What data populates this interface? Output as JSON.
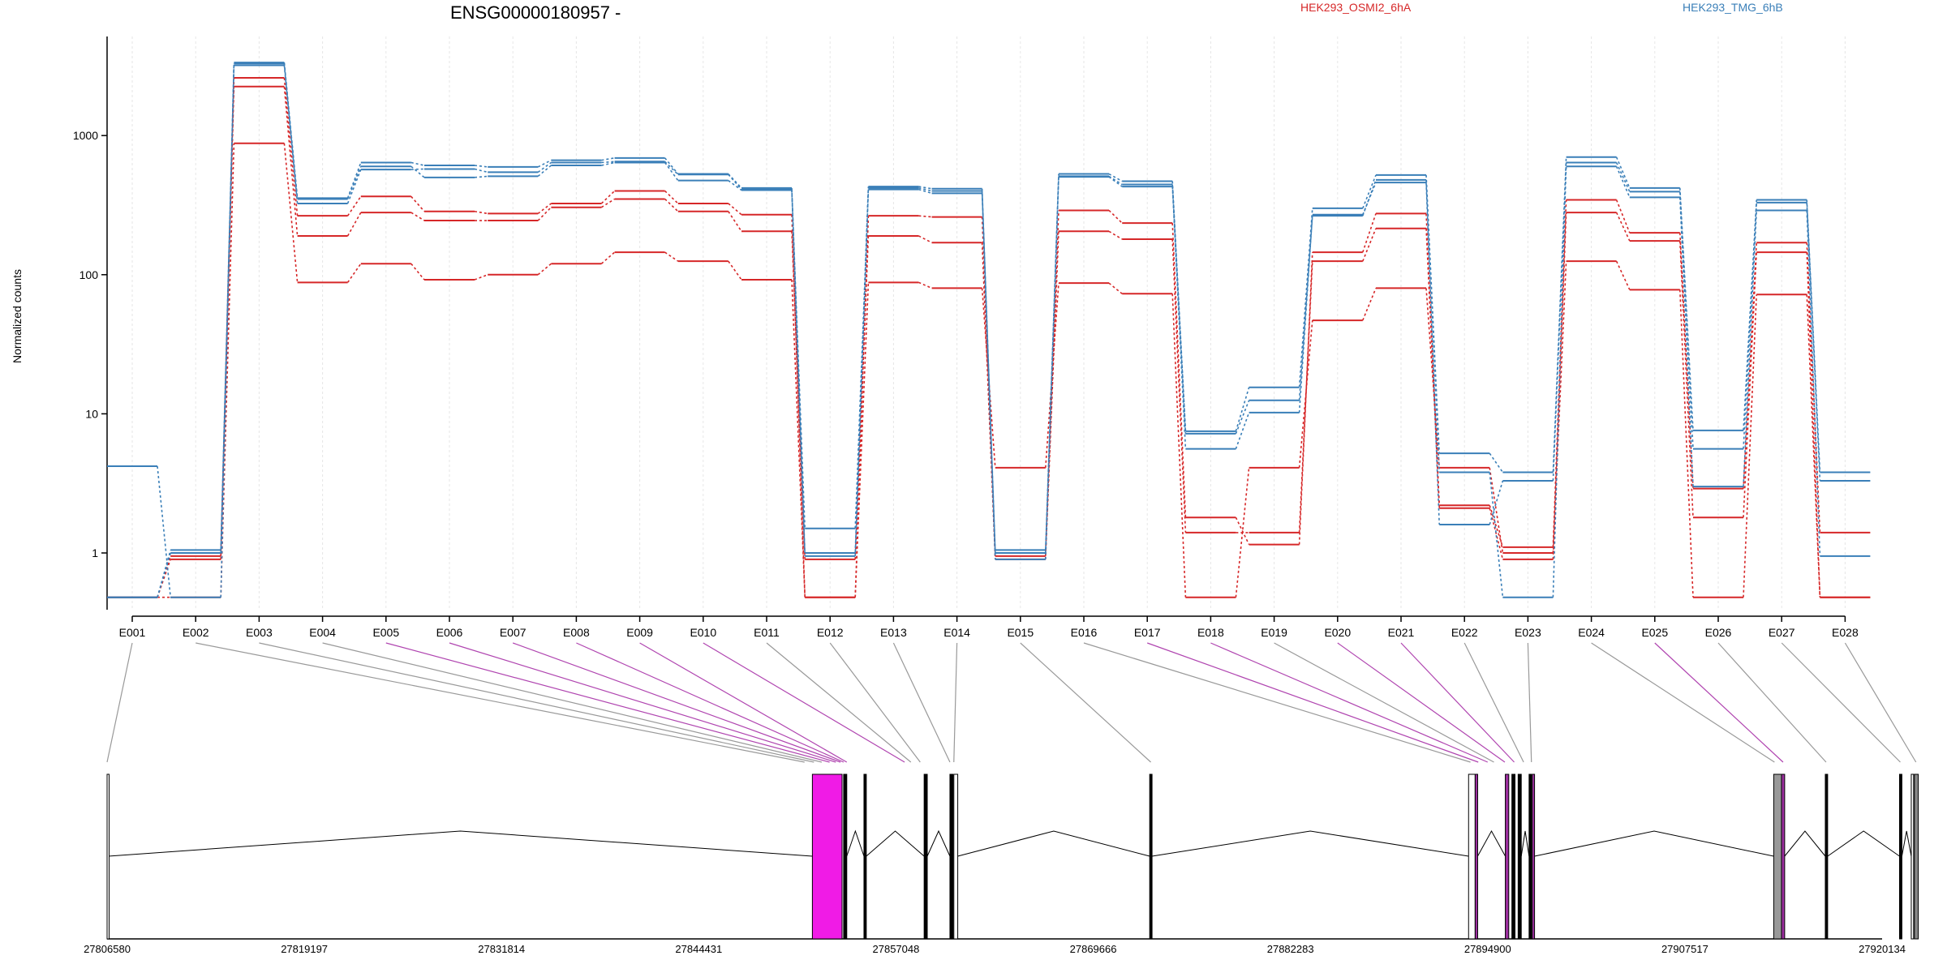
{
  "chart_data": {
    "type": "line",
    "title": "ENSG00000180957 -",
    "ylabel": "Normalized counts",
    "yscale": "log",
    "ylim": [
      0.45,
      4200
    ],
    "yticks": [
      1,
      10,
      100,
      1000
    ],
    "categories": [
      "E001",
      "E002",
      "E003",
      "E004",
      "E005",
      "E006",
      "E007",
      "E008",
      "E009",
      "E010",
      "E011",
      "E012",
      "E013",
      "E014",
      "E015",
      "E016",
      "E017",
      "E018",
      "E019",
      "E020",
      "E021",
      "E022",
      "E023",
      "E024",
      "E025",
      "E026",
      "E027",
      "E028"
    ],
    "groups": [
      {
        "name": "HEK293_OSMI2_6hA",
        "color": "#d62728"
      },
      {
        "name": "HEK293_TMG_6hB",
        "color": "#3a7fb8"
      }
    ],
    "series": [
      {
        "group": 0,
        "values": [
          0.48,
          0.9,
          2250,
          190,
          280,
          245,
          245,
          305,
          350,
          285,
          205,
          0.9,
          190,
          170,
          0.9,
          205,
          180,
          1.4,
          1.4,
          125,
          215,
          2.1,
          0.9,
          280,
          175,
          1.8,
          145,
          0.48
        ]
      },
      {
        "group": 0,
        "values": [
          0.48,
          0.95,
          2600,
          265,
          365,
          285,
          275,
          325,
          400,
          325,
          270,
          0.48,
          265,
          260,
          0.95,
          290,
          235,
          1.8,
          1.15,
          145,
          275,
          2.2,
          1.1,
          345,
          200,
          2.9,
          170,
          1.4
        ]
      },
      {
        "group": 0,
        "values": [
          0.48,
          0.48,
          880,
          88,
          120,
          92,
          100,
          120,
          145,
          125,
          92,
          0.48,
          88,
          80,
          4.1,
          87,
          73,
          0.48,
          4.1,
          47,
          80,
          4.1,
          1.0,
          125,
          78,
          0.48,
          72,
          0.48
        ]
      },
      {
        "group": 1,
        "values": [
          0.48,
          1.05,
          3300,
          355,
          640,
          610,
          595,
          665,
          690,
          530,
          420,
          1.0,
          430,
          415,
          1.05,
          530,
          470,
          7.5,
          15.5,
          300,
          520,
          5.2,
          3.8,
          700,
          420,
          7.6,
          345,
          3.8
        ]
      },
      {
        "group": 1,
        "values": [
          0.48,
          1.0,
          3200,
          325,
          570,
          575,
          545,
          640,
          650,
          525,
          410,
          1.5,
          420,
          400,
          1.0,
          510,
          445,
          7.2,
          12.5,
          265,
          480,
          3.8,
          0.48,
          640,
          395,
          5.6,
          330,
          3.3
        ]
      },
      {
        "group": 1,
        "values": [
          4.2,
          0.48,
          3350,
          350,
          600,
          500,
          510,
          610,
          640,
          475,
          405,
          0.95,
          410,
          385,
          0.9,
          505,
          430,
          5.6,
          10.2,
          270,
          460,
          1.6,
          3.3,
          600,
          360,
          3.0,
          290,
          0.95
        ]
      }
    ],
    "gene_model": {
      "coord_ticks": [
        "27806580",
        "27819197",
        "27831814",
        "27844431",
        "27857048",
        "27869666",
        "27882283",
        "27894900",
        "27907517",
        "27920134"
      ],
      "axis_start": 27806580,
      "axis_end": 27920134,
      "exons": [
        {
          "start": 27806580,
          "end": 27806660,
          "fill": "none"
        },
        {
          "start": 27851700,
          "end": 27853600,
          "fill": "#f01be6"
        },
        {
          "start": 27853700,
          "end": 27853900,
          "fill": "#000000"
        },
        {
          "start": 27855000,
          "end": 27855150,
          "fill": "#000000"
        },
        {
          "start": 27858850,
          "end": 27859050,
          "fill": "#000000"
        },
        {
          "start": 27860500,
          "end": 27860700,
          "fill": "#000000"
        },
        {
          "start": 27860750,
          "end": 27861000,
          "fill": "none"
        },
        {
          "start": 27873280,
          "end": 27873430,
          "fill": "#000000"
        },
        {
          "start": 27893680,
          "end": 27894100,
          "fill": "none"
        },
        {
          "start": 27894100,
          "end": 27894260,
          "fill": "#9d2fa0"
        },
        {
          "start": 27896030,
          "end": 27896250,
          "fill": "#9d2fa0"
        },
        {
          "start": 27896450,
          "end": 27896650,
          "fill": "#000000"
        },
        {
          "start": 27896850,
          "end": 27897050,
          "fill": "#000000"
        },
        {
          "start": 27897550,
          "end": 27897700,
          "fill": "#000000"
        },
        {
          "start": 27897750,
          "end": 27897900,
          "fill": "#9d2fa0"
        },
        {
          "start": 27913200,
          "end": 27913700,
          "fill": "#999999"
        },
        {
          "start": 27913700,
          "end": 27913900,
          "fill": "#9d2fa0"
        },
        {
          "start": 27916500,
          "end": 27916650,
          "fill": "#000000"
        },
        {
          "start": 27921250,
          "end": 27921400,
          "fill": "#000000"
        },
        {
          "start": 27922000,
          "end": 27922150,
          "fill": "none"
        },
        {
          "start": 27922200,
          "end": 27922450,
          "fill": "#888888"
        }
      ],
      "connector_targets": [
        27806580,
        27851200,
        27851800,
        27852300,
        27852800,
        27853200,
        27853500,
        27853700,
        27853900,
        27857600,
        27858000,
        27858600,
        27860500,
        27860750,
        27873350,
        27893800,
        27894300,
        27894900,
        27895300,
        27896000,
        27896600,
        27897200,
        27897700,
        27913250,
        27913800,
        27916550,
        27921300,
        27922300
      ],
      "connector_colors": [
        "#999999",
        "#999999",
        "#999999",
        "#999999",
        "#b045b0",
        "#b045b0",
        "#b045b0",
        "#b045b0",
        "#b045b0",
        "#b045b0",
        "#999999",
        "#999999",
        "#999999",
        "#999999",
        "#999999",
        "#999999",
        "#b045b0",
        "#b045b0",
        "#999999",
        "#b045b0",
        "#b045b0",
        "#999999",
        "#999999",
        "#999999",
        "#b045b0",
        "#999999",
        "#999999",
        "#999999"
      ]
    }
  }
}
